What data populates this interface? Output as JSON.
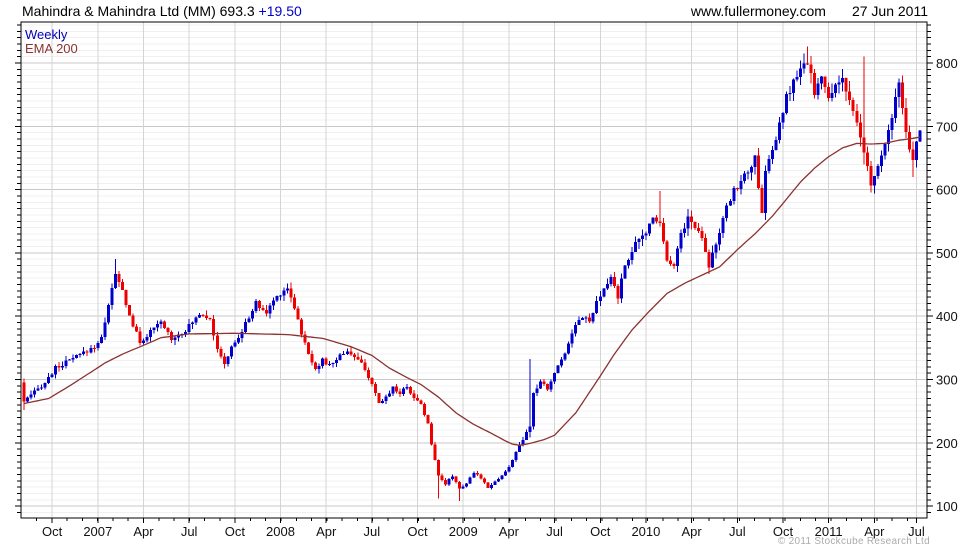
{
  "header": {
    "title": "Mahindra & Mahindra Ltd (MM) 693.3",
    "change": " +19.50",
    "site": "www.fullermoney.com",
    "date": "27 Jun 2011"
  },
  "legend": {
    "timeframe": "Weekly",
    "overlay": "EMA 200"
  },
  "footer": {
    "copyright": "© 2011 Stockcube Research Ltd"
  },
  "chart_data": {
    "type": "candlestick",
    "instrument": "Mahindra & Mahindra Ltd (MM)",
    "timeframe": "Weekly",
    "overlay": "EMA 200",
    "last_price": 693.3,
    "change": "+19.50",
    "weeks": 256,
    "start_open": 295,
    "ylim": [
      85,
      860
    ],
    "y_major_ticks": [
      100,
      200,
      300,
      400,
      500,
      600,
      700,
      800
    ],
    "y_minor_step": 10,
    "x_tick_labels": [
      "Oct",
      "2007",
      "Apr",
      "Jul",
      "Oct",
      "2008",
      "Apr",
      "Jul",
      "Oct",
      "2009",
      "Apr",
      "Jul",
      "Oct",
      "2010",
      "Apr",
      "Jul",
      "Oct",
      "2011",
      "Apr",
      "Jul"
    ],
    "x_tick_weeks": [
      8,
      21,
      34,
      47,
      60,
      73,
      86,
      99,
      112,
      125,
      138,
      151,
      164,
      177,
      190,
      203,
      216,
      229,
      242,
      254
    ],
    "close_anchors": [
      [
        0,
        265
      ],
      [
        3,
        280
      ],
      [
        6,
        295
      ],
      [
        9,
        318
      ],
      [
        13,
        330
      ],
      [
        17,
        342
      ],
      [
        20,
        352
      ],
      [
        22,
        365
      ],
      [
        24,
        420
      ],
      [
        26,
        465
      ],
      [
        28,
        440
      ],
      [
        30,
        400
      ],
      [
        33,
        358
      ],
      [
        36,
        375
      ],
      [
        39,
        390
      ],
      [
        42,
        365
      ],
      [
        46,
        378
      ],
      [
        48,
        390
      ],
      [
        50,
        405
      ],
      [
        53,
        398
      ],
      [
        55,
        345
      ],
      [
        57,
        325
      ],
      [
        59,
        350
      ],
      [
        62,
        375
      ],
      [
        64,
        400
      ],
      [
        66,
        420
      ],
      [
        69,
        405
      ],
      [
        71,
        425
      ],
      [
        73,
        437
      ],
      [
        75,
        445
      ],
      [
        77,
        415
      ],
      [
        79,
        373
      ],
      [
        81,
        340
      ],
      [
        83,
        318
      ],
      [
        85,
        330
      ],
      [
        87,
        322
      ],
      [
        90,
        338
      ],
      [
        92,
        346
      ],
      [
        95,
        330
      ],
      [
        97,
        318
      ],
      [
        99,
        290
      ],
      [
        101,
        262
      ],
      [
        103,
        272
      ],
      [
        105,
        288
      ],
      [
        107,
        278
      ],
      [
        109,
        290
      ],
      [
        111,
        270
      ],
      [
        113,
        262
      ],
      [
        115,
        230
      ],
      [
        116,
        196
      ],
      [
        118,
        150
      ],
      [
        120,
        135
      ],
      [
        122,
        148
      ],
      [
        124,
        128
      ],
      [
        126,
        136
      ],
      [
        128,
        152
      ],
      [
        130,
        145
      ],
      [
        132,
        130
      ],
      [
        134,
        139
      ],
      [
        136,
        148
      ],
      [
        138,
        161
      ],
      [
        140,
        186
      ],
      [
        142,
        205
      ],
      [
        144,
        225
      ],
      [
        145,
        278
      ],
      [
        147,
        296
      ],
      [
        149,
        285
      ],
      [
        151,
        310
      ],
      [
        153,
        332
      ],
      [
        155,
        356
      ],
      [
        157,
        390
      ],
      [
        159,
        400
      ],
      [
        161,
        391
      ],
      [
        163,
        420
      ],
      [
        165,
        441
      ],
      [
        167,
        462
      ],
      [
        169,
        431
      ],
      [
        171,
        480
      ],
      [
        173,
        505
      ],
      [
        175,
        520
      ],
      [
        177,
        531
      ],
      [
        179,
        560
      ],
      [
        181,
        546
      ],
      [
        183,
        492
      ],
      [
        185,
        480
      ],
      [
        187,
        530
      ],
      [
        189,
        556
      ],
      [
        191,
        540
      ],
      [
        193,
        528
      ],
      [
        195,
        481
      ],
      [
        196,
        500
      ],
      [
        198,
        531
      ],
      [
        200,
        570
      ],
      [
        202,
        600
      ],
      [
        204,
        612
      ],
      [
        206,
        631
      ],
      [
        208,
        648
      ],
      [
        209,
        600
      ],
      [
        210,
        560
      ],
      [
        211,
        633
      ],
      [
        213,
        661
      ],
      [
        215,
        700
      ],
      [
        217,
        745
      ],
      [
        219,
        770
      ],
      [
        221,
        786
      ],
      [
        223,
        801
      ],
      [
        225,
        756
      ],
      [
        227,
        776
      ],
      [
        229,
        741
      ],
      [
        231,
        768
      ],
      [
        233,
        778
      ],
      [
        235,
        736
      ],
      [
        237,
        701
      ],
      [
        239,
        660
      ],
      [
        241,
        606
      ],
      [
        243,
        636
      ],
      [
        245,
        666
      ],
      [
        247,
        720
      ],
      [
        249,
        762
      ],
      [
        251,
        690
      ],
      [
        252,
        661
      ],
      [
        253,
        648
      ],
      [
        254,
        674
      ],
      [
        255,
        693.3
      ]
    ],
    "ema_anchors": [
      [
        0,
        262
      ],
      [
        7,
        270
      ],
      [
        13,
        290
      ],
      [
        20,
        315
      ],
      [
        23,
        326
      ],
      [
        28,
        340
      ],
      [
        34,
        354
      ],
      [
        39,
        366
      ],
      [
        47,
        372
      ],
      [
        60,
        373
      ],
      [
        75,
        371
      ],
      [
        85,
        365
      ],
      [
        93,
        352
      ],
      [
        99,
        338
      ],
      [
        104,
        318
      ],
      [
        109,
        303
      ],
      [
        113,
        292
      ],
      [
        118,
        272
      ],
      [
        123,
        247
      ],
      [
        128,
        229
      ],
      [
        133,
        215
      ],
      [
        137,
        203
      ],
      [
        139,
        198
      ],
      [
        141,
        196
      ],
      [
        144,
        199
      ],
      [
        148,
        205
      ],
      [
        151,
        212
      ],
      [
        157,
        247
      ],
      [
        163,
        297
      ],
      [
        168,
        340
      ],
      [
        173,
        378
      ],
      [
        178,
        408
      ],
      [
        183,
        436
      ],
      [
        188,
        452
      ],
      [
        193,
        465
      ],
      [
        198,
        478
      ],
      [
        203,
        505
      ],
      [
        208,
        530
      ],
      [
        213,
        558
      ],
      [
        217,
        585
      ],
      [
        221,
        612
      ],
      [
        225,
        634
      ],
      [
        229,
        652
      ],
      [
        233,
        666
      ],
      [
        237,
        673
      ],
      [
        241,
        672
      ],
      [
        245,
        673
      ],
      [
        249,
        678
      ],
      [
        253,
        681
      ],
      [
        255,
        683
      ]
    ],
    "wick_overrides": [
      [
        0,
        null,
        252
      ],
      [
        26,
        490,
        null
      ],
      [
        75,
        452,
        null
      ],
      [
        118,
        null,
        112
      ],
      [
        124,
        null,
        108
      ],
      [
        144,
        332,
        208
      ],
      [
        181,
        598,
        null
      ],
      [
        223,
        826,
        null
      ],
      [
        239,
        810,
        640
      ],
      [
        253,
        null,
        620
      ]
    ],
    "noise": {
      "seed": 987654321,
      "close_amp": 0.02,
      "wick_amp": 0.022
    },
    "colors": {
      "up": "#0000CC",
      "down": "#EE0000",
      "ema": "#8B3232",
      "grid_major": "#C8C8C8",
      "grid_minor": "#F0F0F0",
      "grid_vert": "#D4D4D4",
      "axis": "#000000",
      "tick_label": "#111111"
    }
  }
}
